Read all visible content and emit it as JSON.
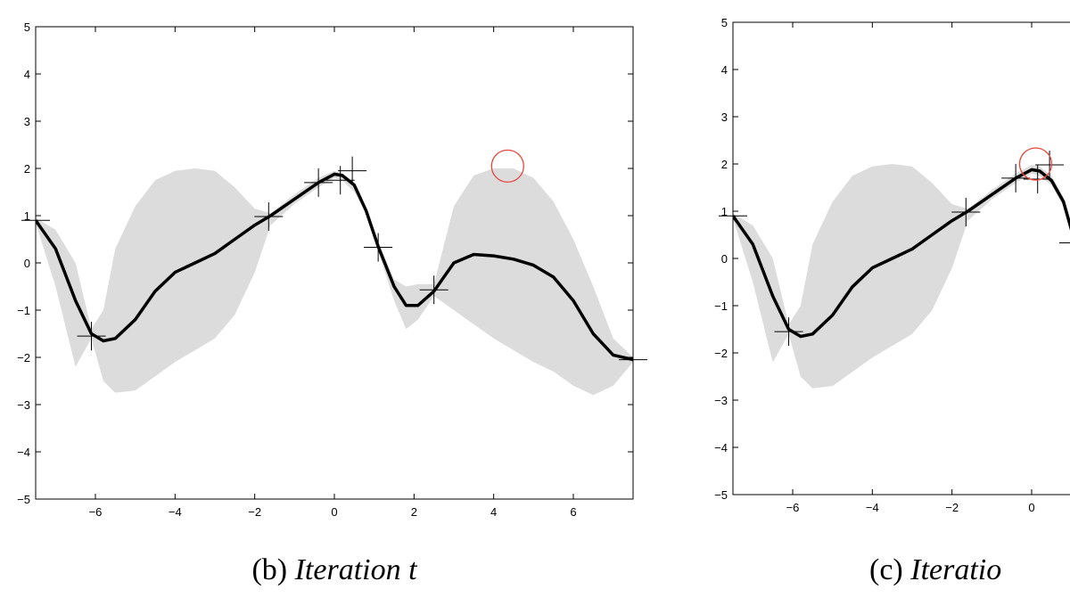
{
  "chart_data": [
    {
      "type": "line",
      "caption_prefix": "(b)",
      "caption_title": "Iteration t",
      "xlim": [
        -7.5,
        7.5
      ],
      "ylim": [
        -5,
        5
      ],
      "x_ticks": [
        {
          "v": -6,
          "label": "−6"
        },
        {
          "v": -4,
          "label": "−4"
        },
        {
          "v": -2,
          "label": "−2"
        },
        {
          "v": 0,
          "label": "0"
        },
        {
          "v": 2,
          "label": "2"
        },
        {
          "v": 4,
          "label": "4"
        },
        {
          "v": 6,
          "label": "6"
        }
      ],
      "y_ticks": [
        {
          "v": -5,
          "label": "−5"
        },
        {
          "v": -4,
          "label": "−4"
        },
        {
          "v": -3,
          "label": "−3"
        },
        {
          "v": -2,
          "label": "−2"
        },
        {
          "v": -1,
          "label": "−1"
        },
        {
          "v": 0,
          "label": "0"
        },
        {
          "v": 1,
          "label": "1"
        },
        {
          "v": 2,
          "label": "2"
        },
        {
          "v": 3,
          "label": "3"
        },
        {
          "v": 4,
          "label": "4"
        },
        {
          "v": 5,
          "label": "5"
        }
      ],
      "mean": [
        [
          -7.5,
          0.9
        ],
        [
          -7.0,
          0.3
        ],
        [
          -6.5,
          -0.8
        ],
        [
          -6.1,
          -1.5
        ],
        [
          -5.8,
          -1.65
        ],
        [
          -5.5,
          -1.6
        ],
        [
          -5.0,
          -1.2
        ],
        [
          -4.5,
          -0.6
        ],
        [
          -4.0,
          -0.2
        ],
        [
          -3.5,
          0.0
        ],
        [
          -3.0,
          0.2
        ],
        [
          -2.5,
          0.5
        ],
        [
          -2.0,
          0.8
        ],
        [
          -1.6,
          1.0
        ],
        [
          -1.0,
          1.35
        ],
        [
          -0.4,
          1.7
        ],
        [
          0.0,
          1.88
        ],
        [
          0.2,
          1.85
        ],
        [
          0.5,
          1.65
        ],
        [
          0.8,
          1.1
        ],
        [
          1.1,
          0.35
        ],
        [
          1.5,
          -0.5
        ],
        [
          1.8,
          -0.9
        ],
        [
          2.1,
          -0.9
        ],
        [
          2.5,
          -0.6
        ],
        [
          3.0,
          0.0
        ],
        [
          3.5,
          0.18
        ],
        [
          4.0,
          0.15
        ],
        [
          4.5,
          0.08
        ],
        [
          5.0,
          -0.05
        ],
        [
          5.5,
          -0.3
        ],
        [
          6.0,
          -0.8
        ],
        [
          6.5,
          -1.5
        ],
        [
          7.0,
          -1.95
        ],
        [
          7.5,
          -2.05
        ]
      ],
      "band_upper": [
        [
          -7.5,
          0.95
        ],
        [
          -7.0,
          0.7
        ],
        [
          -6.5,
          0.0
        ],
        [
          -6.1,
          -1.4
        ],
        [
          -5.8,
          -1.0
        ],
        [
          -5.5,
          0.3
        ],
        [
          -5.0,
          1.2
        ],
        [
          -4.5,
          1.75
        ],
        [
          -4.0,
          1.95
        ],
        [
          -3.5,
          2.0
        ],
        [
          -3.0,
          1.95
        ],
        [
          -2.5,
          1.6
        ],
        [
          -2.0,
          1.15
        ],
        [
          -1.6,
          1.05
        ],
        [
          -1.0,
          1.45
        ],
        [
          -0.4,
          1.8
        ],
        [
          0.0,
          1.95
        ],
        [
          0.2,
          1.9
        ],
        [
          0.5,
          1.7
        ],
        [
          0.8,
          1.15
        ],
        [
          1.1,
          0.45
        ],
        [
          1.5,
          -0.35
        ],
        [
          1.8,
          -0.5
        ],
        [
          2.1,
          -0.45
        ],
        [
          2.5,
          -0.45
        ],
        [
          3.0,
          1.2
        ],
        [
          3.5,
          1.85
        ],
        [
          4.0,
          2.0
        ],
        [
          4.5,
          2.0
        ],
        [
          5.0,
          1.8
        ],
        [
          5.5,
          1.3
        ],
        [
          6.0,
          0.5
        ],
        [
          6.5,
          -0.5
        ],
        [
          7.0,
          -1.6
        ],
        [
          7.5,
          -2.0
        ]
      ],
      "band_lower": [
        [
          -7.5,
          0.85
        ],
        [
          -7.0,
          -0.5
        ],
        [
          -6.5,
          -2.2
        ],
        [
          -6.1,
          -1.6
        ],
        [
          -5.8,
          -2.5
        ],
        [
          -5.5,
          -2.75
        ],
        [
          -5.0,
          -2.7
        ],
        [
          -4.5,
          -2.4
        ],
        [
          -4.0,
          -2.1
        ],
        [
          -3.5,
          -1.85
        ],
        [
          -3.0,
          -1.6
        ],
        [
          -2.5,
          -1.1
        ],
        [
          -2.0,
          -0.2
        ],
        [
          -1.6,
          0.8
        ],
        [
          -1.0,
          1.25
        ],
        [
          -0.4,
          1.6
        ],
        [
          0.0,
          1.8
        ],
        [
          0.2,
          1.75
        ],
        [
          0.5,
          1.5
        ],
        [
          0.8,
          1.05
        ],
        [
          1.1,
          0.25
        ],
        [
          1.5,
          -0.8
        ],
        [
          1.8,
          -1.4
        ],
        [
          2.1,
          -1.2
        ],
        [
          2.5,
          -0.7
        ],
        [
          3.0,
          -1.0
        ],
        [
          3.5,
          -1.3
        ],
        [
          4.0,
          -1.6
        ],
        [
          4.5,
          -1.85
        ],
        [
          5.0,
          -2.1
        ],
        [
          5.5,
          -2.3
        ],
        [
          6.0,
          -2.6
        ],
        [
          6.5,
          -2.8
        ],
        [
          7.0,
          -2.6
        ],
        [
          7.5,
          -2.1
        ]
      ],
      "observations": [
        [
          -7.5,
          0.9
        ],
        [
          -6.1,
          -1.55
        ],
        [
          -1.65,
          0.98
        ],
        [
          -0.4,
          1.7
        ],
        [
          0.15,
          1.75
        ],
        [
          0.45,
          1.95
        ],
        [
          1.1,
          0.33
        ],
        [
          2.5,
          -0.57
        ],
        [
          7.5,
          -2.05
        ]
      ],
      "next_query": [
        4.35,
        2.05
      ]
    },
    {
      "type": "line",
      "caption_prefix": "(c)",
      "caption_title": "Iteratio",
      "xlim": [
        -7.5,
        7.5
      ],
      "ylim": [
        -5,
        5
      ],
      "x_ticks": [
        {
          "v": -6,
          "label": "−6"
        },
        {
          "v": -4,
          "label": "−4"
        },
        {
          "v": -2,
          "label": "−2"
        },
        {
          "v": 0,
          "label": "0"
        }
      ],
      "y_ticks": [
        {
          "v": -5,
          "label": "−5"
        },
        {
          "v": -4,
          "label": "−4"
        },
        {
          "v": -3,
          "label": "−3"
        },
        {
          "v": -2,
          "label": "−2"
        },
        {
          "v": -1,
          "label": "−1"
        },
        {
          "v": 0,
          "label": "0"
        },
        {
          "v": 1,
          "label": "1"
        },
        {
          "v": 2,
          "label": "2"
        },
        {
          "v": 3,
          "label": "3"
        },
        {
          "v": 4,
          "label": "4"
        },
        {
          "v": 5,
          "label": "5"
        }
      ],
      "mean": [
        [
          -7.5,
          0.9
        ],
        [
          -7.0,
          0.3
        ],
        [
          -6.5,
          -0.8
        ],
        [
          -6.1,
          -1.5
        ],
        [
          -5.8,
          -1.65
        ],
        [
          -5.5,
          -1.6
        ],
        [
          -5.0,
          -1.2
        ],
        [
          -4.5,
          -0.6
        ],
        [
          -4.0,
          -0.2
        ],
        [
          -3.5,
          0.0
        ],
        [
          -3.0,
          0.2
        ],
        [
          -2.5,
          0.5
        ],
        [
          -2.0,
          0.8
        ],
        [
          -1.6,
          1.0
        ],
        [
          -1.0,
          1.35
        ],
        [
          -0.4,
          1.7
        ],
        [
          0.0,
          1.88
        ],
        [
          0.2,
          1.85
        ],
        [
          0.5,
          1.65
        ],
        [
          0.8,
          1.2
        ],
        [
          1.0,
          0.6
        ]
      ],
      "band_upper": [
        [
          -7.5,
          0.95
        ],
        [
          -7.0,
          0.7
        ],
        [
          -6.5,
          0.0
        ],
        [
          -6.1,
          -1.4
        ],
        [
          -5.8,
          -1.0
        ],
        [
          -5.5,
          0.3
        ],
        [
          -5.0,
          1.2
        ],
        [
          -4.5,
          1.75
        ],
        [
          -4.0,
          1.95
        ],
        [
          -3.5,
          2.0
        ],
        [
          -3.0,
          1.95
        ],
        [
          -2.5,
          1.6
        ],
        [
          -2.0,
          1.15
        ],
        [
          -1.6,
          1.05
        ],
        [
          -1.0,
          1.45
        ],
        [
          -0.4,
          1.8
        ],
        [
          0.0,
          1.98
        ],
        [
          0.2,
          1.95
        ],
        [
          0.5,
          1.75
        ],
        [
          0.8,
          1.3
        ],
        [
          1.0,
          0.7
        ]
      ],
      "band_lower": [
        [
          -7.5,
          0.85
        ],
        [
          -7.0,
          -0.5
        ],
        [
          -6.5,
          -2.2
        ],
        [
          -6.1,
          -1.6
        ],
        [
          -5.8,
          -2.5
        ],
        [
          -5.5,
          -2.75
        ],
        [
          -5.0,
          -2.7
        ],
        [
          -4.5,
          -2.4
        ],
        [
          -4.0,
          -2.1
        ],
        [
          -3.5,
          -1.85
        ],
        [
          -3.0,
          -1.6
        ],
        [
          -2.5,
          -1.1
        ],
        [
          -2.0,
          -0.2
        ],
        [
          -1.6,
          0.8
        ],
        [
          -1.0,
          1.25
        ],
        [
          -0.4,
          1.6
        ],
        [
          0.0,
          1.8
        ],
        [
          0.2,
          1.75
        ],
        [
          0.5,
          1.55
        ],
        [
          0.8,
          1.1
        ],
        [
          1.0,
          0.5
        ]
      ],
      "observations": [
        [
          -7.5,
          0.9
        ],
        [
          -6.1,
          -1.55
        ],
        [
          -1.65,
          0.98
        ],
        [
          -0.4,
          1.7
        ],
        [
          0.15,
          1.68
        ],
        [
          0.45,
          1.98
        ],
        [
          1.05,
          0.33
        ]
      ],
      "next_query": [
        0.1,
        2.0
      ]
    }
  ]
}
